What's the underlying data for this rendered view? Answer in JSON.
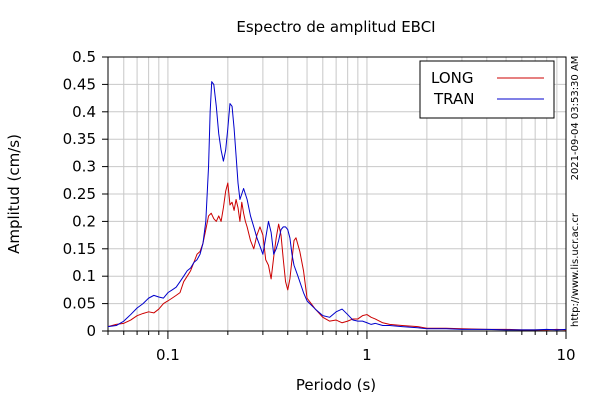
{
  "chart_data": {
    "type": "line",
    "title": "Espectro de amplitud EBCI",
    "xlabel": "Periodo (s)",
    "ylabel": "Amplitud (cm/s)",
    "x_scale": "log",
    "xlim": [
      0.05,
      10
    ],
    "ylim": [
      0,
      0.5
    ],
    "x_ticks": [
      {
        "value": 0.1,
        "label": "0.1"
      },
      {
        "value": 1,
        "label": "1"
      },
      {
        "value": 10,
        "label": "10"
      }
    ],
    "y_ticks": [
      {
        "value": 0,
        "label": "0"
      },
      {
        "value": 0.05,
        "label": "0.05"
      },
      {
        "value": 0.1,
        "label": "0.1"
      },
      {
        "value": 0.15,
        "label": "0.15"
      },
      {
        "value": 0.2,
        "label": "0.2"
      },
      {
        "value": 0.25,
        "label": "0.25"
      },
      {
        "value": 0.3,
        "label": "0.3"
      },
      {
        "value": 0.35,
        "label": "0.35"
      },
      {
        "value": 0.4,
        "label": "0.4"
      },
      {
        "value": 0.45,
        "label": "0.45"
      },
      {
        "value": 0.5,
        "label": "0.5"
      }
    ],
    "grid": true,
    "legend_position": "top-right",
    "series": [
      {
        "name": "LONG",
        "color": "#cc0000",
        "points": [
          [
            0.05,
            0.008
          ],
          [
            0.055,
            0.012
          ],
          [
            0.06,
            0.014
          ],
          [
            0.065,
            0.02
          ],
          [
            0.07,
            0.028
          ],
          [
            0.075,
            0.032
          ],
          [
            0.08,
            0.035
          ],
          [
            0.085,
            0.033
          ],
          [
            0.09,
            0.04
          ],
          [
            0.095,
            0.05
          ],
          [
            0.1,
            0.055
          ],
          [
            0.105,
            0.06
          ],
          [
            0.11,
            0.065
          ],
          [
            0.115,
            0.07
          ],
          [
            0.12,
            0.09
          ],
          [
            0.125,
            0.1
          ],
          [
            0.13,
            0.11
          ],
          [
            0.135,
            0.125
          ],
          [
            0.14,
            0.14
          ],
          [
            0.145,
            0.145
          ],
          [
            0.15,
            0.16
          ],
          [
            0.155,
            0.185
          ],
          [
            0.16,
            0.21
          ],
          [
            0.165,
            0.215
          ],
          [
            0.17,
            0.205
          ],
          [
            0.175,
            0.2
          ],
          [
            0.18,
            0.21
          ],
          [
            0.185,
            0.2
          ],
          [
            0.19,
            0.225
          ],
          [
            0.195,
            0.255
          ],
          [
            0.2,
            0.27
          ],
          [
            0.205,
            0.23
          ],
          [
            0.21,
            0.235
          ],
          [
            0.215,
            0.22
          ],
          [
            0.22,
            0.24
          ],
          [
            0.225,
            0.225
          ],
          [
            0.23,
            0.2
          ],
          [
            0.235,
            0.235
          ],
          [
            0.24,
            0.215
          ],
          [
            0.245,
            0.2
          ],
          [
            0.25,
            0.19
          ],
          [
            0.26,
            0.165
          ],
          [
            0.27,
            0.15
          ],
          [
            0.28,
            0.175
          ],
          [
            0.29,
            0.19
          ],
          [
            0.3,
            0.175
          ],
          [
            0.31,
            0.13
          ],
          [
            0.32,
            0.12
          ],
          [
            0.33,
            0.095
          ],
          [
            0.34,
            0.135
          ],
          [
            0.35,
            0.17
          ],
          [
            0.36,
            0.195
          ],
          [
            0.37,
            0.175
          ],
          [
            0.38,
            0.13
          ],
          [
            0.39,
            0.09
          ],
          [
            0.4,
            0.075
          ],
          [
            0.41,
            0.095
          ],
          [
            0.42,
            0.13
          ],
          [
            0.43,
            0.165
          ],
          [
            0.44,
            0.17
          ],
          [
            0.46,
            0.145
          ],
          [
            0.48,
            0.11
          ],
          [
            0.5,
            0.06
          ],
          [
            0.55,
            0.04
          ],
          [
            0.6,
            0.025
          ],
          [
            0.65,
            0.018
          ],
          [
            0.7,
            0.02
          ],
          [
            0.75,
            0.015
          ],
          [
            0.8,
            0.018
          ],
          [
            0.85,
            0.022
          ],
          [
            0.9,
            0.022
          ],
          [
            0.95,
            0.028
          ],
          [
            1.0,
            0.03
          ],
          [
            1.05,
            0.025
          ],
          [
            1.1,
            0.022
          ],
          [
            1.2,
            0.015
          ],
          [
            1.3,
            0.012
          ],
          [
            1.5,
            0.01
          ],
          [
            1.8,
            0.008
          ],
          [
            2.0,
            0.005
          ],
          [
            2.5,
            0.005
          ],
          [
            3.0,
            0.004
          ],
          [
            4.0,
            0.003
          ],
          [
            5.0,
            0.003
          ],
          [
            6.0,
            0.002
          ],
          [
            7.0,
            0.002
          ],
          [
            8.0,
            0.002
          ],
          [
            9.0,
            0.003
          ],
          [
            10.0,
            0.002
          ]
        ]
      },
      {
        "name": "TRAN",
        "color": "#0000cc",
        "points": [
          [
            0.05,
            0.008
          ],
          [
            0.055,
            0.01
          ],
          [
            0.06,
            0.018
          ],
          [
            0.065,
            0.03
          ],
          [
            0.07,
            0.042
          ],
          [
            0.075,
            0.05
          ],
          [
            0.08,
            0.06
          ],
          [
            0.085,
            0.065
          ],
          [
            0.09,
            0.062
          ],
          [
            0.095,
            0.06
          ],
          [
            0.1,
            0.07
          ],
          [
            0.105,
            0.075
          ],
          [
            0.11,
            0.08
          ],
          [
            0.115,
            0.09
          ],
          [
            0.12,
            0.1
          ],
          [
            0.125,
            0.11
          ],
          [
            0.13,
            0.115
          ],
          [
            0.135,
            0.125
          ],
          [
            0.14,
            0.13
          ],
          [
            0.145,
            0.14
          ],
          [
            0.15,
            0.16
          ],
          [
            0.155,
            0.2
          ],
          [
            0.16,
            0.3
          ],
          [
            0.163,
            0.4
          ],
          [
            0.166,
            0.455
          ],
          [
            0.17,
            0.45
          ],
          [
            0.175,
            0.41
          ],
          [
            0.18,
            0.36
          ],
          [
            0.185,
            0.33
          ],
          [
            0.19,
            0.31
          ],
          [
            0.195,
            0.33
          ],
          [
            0.2,
            0.37
          ],
          [
            0.205,
            0.415
          ],
          [
            0.21,
            0.41
          ],
          [
            0.215,
            0.37
          ],
          [
            0.22,
            0.32
          ],
          [
            0.225,
            0.27
          ],
          [
            0.23,
            0.24
          ],
          [
            0.24,
            0.26
          ],
          [
            0.25,
            0.24
          ],
          [
            0.26,
            0.21
          ],
          [
            0.27,
            0.19
          ],
          [
            0.28,
            0.17
          ],
          [
            0.29,
            0.155
          ],
          [
            0.3,
            0.14
          ],
          [
            0.31,
            0.17
          ],
          [
            0.32,
            0.2
          ],
          [
            0.33,
            0.18
          ],
          [
            0.34,
            0.14
          ],
          [
            0.35,
            0.15
          ],
          [
            0.36,
            0.165
          ],
          [
            0.37,
            0.185
          ],
          [
            0.38,
            0.19
          ],
          [
            0.39,
            0.19
          ],
          [
            0.4,
            0.185
          ],
          [
            0.41,
            0.17
          ],
          [
            0.42,
            0.14
          ],
          [
            0.43,
            0.12
          ],
          [
            0.45,
            0.1
          ],
          [
            0.48,
            0.07
          ],
          [
            0.5,
            0.055
          ],
          [
            0.55,
            0.04
          ],
          [
            0.6,
            0.028
          ],
          [
            0.65,
            0.025
          ],
          [
            0.7,
            0.035
          ],
          [
            0.75,
            0.04
          ],
          [
            0.8,
            0.03
          ],
          [
            0.85,
            0.02
          ],
          [
            0.9,
            0.018
          ],
          [
            0.95,
            0.018
          ],
          [
            1.0,
            0.015
          ],
          [
            1.05,
            0.012
          ],
          [
            1.1,
            0.014
          ],
          [
            1.2,
            0.01
          ],
          [
            1.3,
            0.01
          ],
          [
            1.5,
            0.008
          ],
          [
            1.8,
            0.006
          ],
          [
            2.0,
            0.004
          ],
          [
            2.5,
            0.004
          ],
          [
            3.0,
            0.003
          ],
          [
            4.0,
            0.003
          ],
          [
            5.0,
            0.002
          ],
          [
            6.0,
            0.002
          ],
          [
            7.0,
            0.002
          ],
          [
            8.0,
            0.003
          ],
          [
            9.0,
            0.002
          ],
          [
            10.0,
            0.003
          ]
        ]
      }
    ],
    "side_labels": [
      "2021-09-04 03:53:30 AM",
      "http://www.lis.ucr.ac.cr"
    ]
  }
}
